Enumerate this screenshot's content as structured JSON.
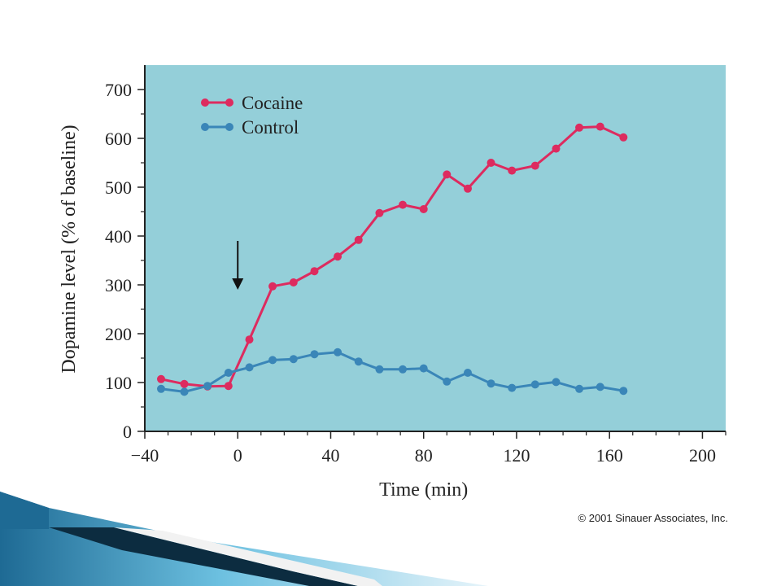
{
  "colors": {
    "plot_background": "#94cfd9",
    "cocaine": "#dd2b5f",
    "control": "#3a86b8",
    "axis": "#222222",
    "slide_accent_dark": "#0c2c40",
    "slide_accent_mid": "#1e6a94",
    "slide_accent_light": "#6cc0e0"
  },
  "copyright": "© 2001 Sinauer Associates, Inc.",
  "chart_data": {
    "type": "line",
    "xlabel": "Time (min)",
    "ylabel": "Dopamine level (% of baseline)",
    "xlim": [
      -40,
      210
    ],
    "ylim": [
      0,
      700
    ],
    "xticks": [
      -40,
      0,
      40,
      80,
      120,
      160,
      200
    ],
    "xtick_labels": [
      "−40",
      "0",
      "40",
      "80",
      "120",
      "160",
      "200"
    ],
    "yticks": [
      0,
      100,
      200,
      300,
      400,
      500,
      600,
      700
    ],
    "grid": false,
    "legend_position": "top-left",
    "annotation": {
      "type": "arrow-down",
      "x": 0,
      "y_from": 390,
      "y_to": 290
    },
    "series": [
      {
        "name": "Cocaine",
        "color": "#dd2b5f",
        "x": [
          -33,
          -23,
          -13,
          -4,
          5,
          15,
          24,
          33,
          43,
          52,
          61,
          71,
          80,
          90,
          99,
          109,
          118,
          128,
          137,
          147,
          156,
          166
        ],
        "y": [
          107,
          97,
          92,
          93,
          188,
          297,
          305,
          328,
          358,
          392,
          447,
          464,
          455,
          526,
          497,
          550,
          534,
          544,
          579,
          622,
          624,
          602
        ]
      },
      {
        "name": "Control",
        "color": "#3a86b8",
        "x": [
          -33,
          -23,
          -13,
          -4,
          5,
          15,
          24,
          33,
          43,
          52,
          61,
          71,
          80,
          90,
          99,
          109,
          118,
          128,
          137,
          147,
          156,
          166
        ],
        "y": [
          87,
          81,
          93,
          120,
          131,
          146,
          148,
          158,
          162,
          143,
          127,
          127,
          129,
          102,
          120,
          98,
          89,
          96,
          101,
          87,
          91,
          83
        ]
      }
    ]
  }
}
